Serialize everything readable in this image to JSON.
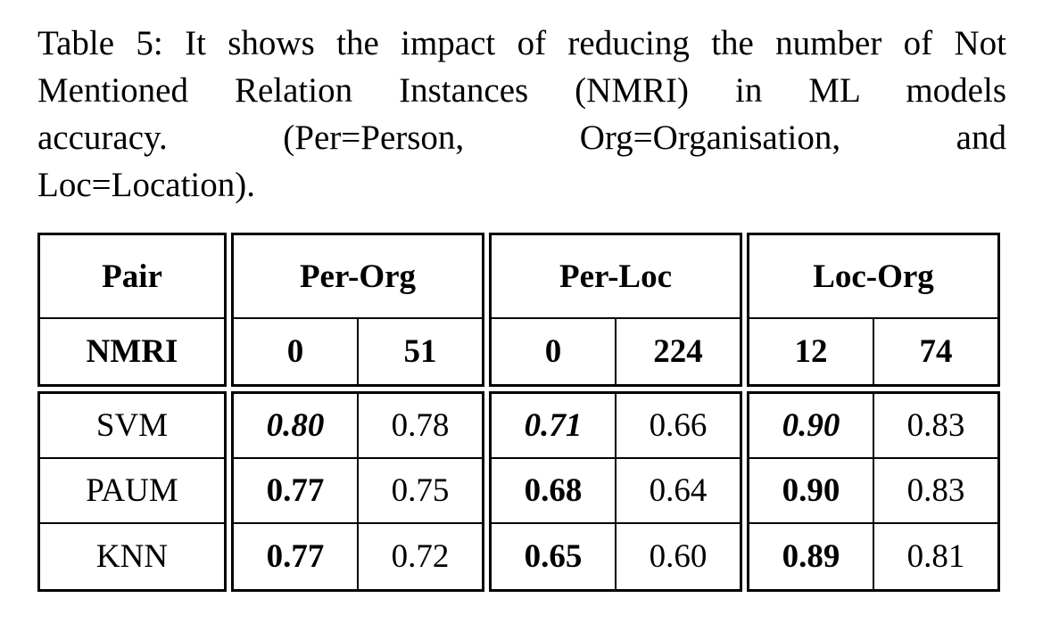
{
  "caption": {
    "lines": [
      "Table 5: It shows the impact of reducing the number of Not",
      "Mentioned Relation Instances (NMRI) in ML models",
      "accuracy. (Per=Person, Org=Organisation, and",
      "Loc=Location)."
    ]
  },
  "table": {
    "pair_header": "Pair",
    "nmri_header": "NMRI",
    "models": [
      "SVM",
      "PAUM",
      "KNN"
    ],
    "groups": [
      {
        "label": "Per-Org",
        "nmri": [
          "0",
          "51"
        ],
        "values": [
          [
            "0.80",
            "0.78"
          ],
          [
            "0.77",
            "0.75"
          ],
          [
            "0.77",
            "0.72"
          ]
        ]
      },
      {
        "label": "Per-Loc",
        "nmri": [
          "0",
          "224"
        ],
        "values": [
          [
            "0.71",
            "0.66"
          ],
          [
            "0.68",
            "0.64"
          ],
          [
            "0.65",
            "0.60"
          ]
        ]
      },
      {
        "label": "Loc-Org",
        "nmri": [
          "12",
          "74"
        ],
        "values": [
          [
            "0.90",
            "0.83"
          ],
          [
            "0.90",
            "0.83"
          ],
          [
            "0.89",
            "0.81"
          ]
        ]
      }
    ],
    "colors": {
      "text": "#000000",
      "border": "#000000",
      "background": "#ffffff"
    }
  }
}
